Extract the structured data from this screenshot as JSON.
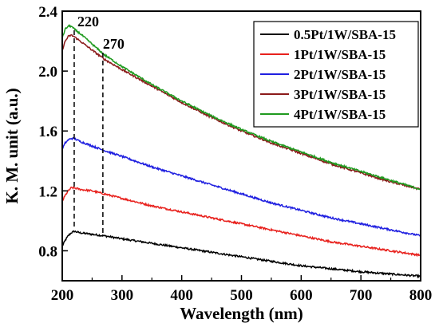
{
  "chart_data": {
    "type": "line",
    "title": "",
    "xlabel": "Wavelength (nm)",
    "ylabel": "K. M. unit (a.u.)",
    "xlim": [
      200,
      800
    ],
    "ylim": [
      0.6,
      2.4
    ],
    "xticks": [
      200,
      300,
      400,
      500,
      600,
      700,
      800
    ],
    "yticks": [
      0.8,
      1.2,
      1.6,
      2.0,
      2.4
    ],
    "xtick_labels": [
      "200",
      "300",
      "400",
      "500",
      "600",
      "700",
      "800"
    ],
    "ytick_labels": [
      "0.8",
      "1.2",
      "1.6",
      "2.0",
      "2.4"
    ],
    "grid": false,
    "legend_position": "top-right",
    "annotations": [
      {
        "label": "220",
        "x": 220
      },
      {
        "label": "270",
        "x": 268
      }
    ],
    "series": [
      {
        "name": "0.5Pt/1W/SBA-15",
        "color": "#000000",
        "points": [
          [
            200,
            0.83
          ],
          [
            205,
            0.87
          ],
          [
            210,
            0.9
          ],
          [
            215,
            0.92
          ],
          [
            220,
            0.93
          ],
          [
            230,
            0.92
          ],
          [
            250,
            0.91
          ],
          [
            270,
            0.9
          ],
          [
            300,
            0.88
          ],
          [
            350,
            0.85
          ],
          [
            400,
            0.82
          ],
          [
            450,
            0.79
          ],
          [
            500,
            0.76
          ],
          [
            550,
            0.73
          ],
          [
            600,
            0.7
          ],
          [
            650,
            0.68
          ],
          [
            700,
            0.66
          ],
          [
            750,
            0.645
          ],
          [
            800,
            0.63
          ]
        ]
      },
      {
        "name": "1Pt/1W/SBA-15",
        "color": "#e8211d",
        "points": [
          [
            200,
            1.13
          ],
          [
            205,
            1.17
          ],
          [
            210,
            1.2
          ],
          [
            215,
            1.22
          ],
          [
            220,
            1.22
          ],
          [
            230,
            1.21
          ],
          [
            250,
            1.2
          ],
          [
            270,
            1.18
          ],
          [
            300,
            1.15
          ],
          [
            350,
            1.1
          ],
          [
            400,
            1.06
          ],
          [
            450,
            1.02
          ],
          [
            500,
            0.98
          ],
          [
            550,
            0.94
          ],
          [
            600,
            0.9
          ],
          [
            650,
            0.86
          ],
          [
            700,
            0.83
          ],
          [
            750,
            0.8
          ],
          [
            800,
            0.77
          ]
        ]
      },
      {
        "name": "2Pt/1W/SBA-15",
        "color": "#1f1fe0",
        "points": [
          [
            200,
            1.48
          ],
          [
            205,
            1.52
          ],
          [
            210,
            1.54
          ],
          [
            215,
            1.55
          ],
          [
            220,
            1.55
          ],
          [
            230,
            1.53
          ],
          [
            250,
            1.5
          ],
          [
            270,
            1.47
          ],
          [
            300,
            1.43
          ],
          [
            350,
            1.36
          ],
          [
            400,
            1.3
          ],
          [
            450,
            1.24
          ],
          [
            500,
            1.18
          ],
          [
            550,
            1.12
          ],
          [
            600,
            1.07
          ],
          [
            650,
            1.02
          ],
          [
            700,
            0.98
          ],
          [
            750,
            0.94
          ],
          [
            800,
            0.9
          ]
        ]
      },
      {
        "name": "3Pt/1W/SBA-15",
        "color": "#8b1a1a",
        "points": [
          [
            200,
            2.14
          ],
          [
            205,
            2.2
          ],
          [
            210,
            2.23
          ],
          [
            215,
            2.24
          ],
          [
            220,
            2.23
          ],
          [
            230,
            2.2
          ],
          [
            250,
            2.14
          ],
          [
            270,
            2.08
          ],
          [
            300,
            2.01
          ],
          [
            350,
            1.9
          ],
          [
            400,
            1.79
          ],
          [
            450,
            1.69
          ],
          [
            500,
            1.6
          ],
          [
            550,
            1.52
          ],
          [
            600,
            1.45
          ],
          [
            650,
            1.38
          ],
          [
            700,
            1.32
          ],
          [
            750,
            1.26
          ],
          [
            800,
            1.21
          ]
        ]
      },
      {
        "name": "4Pt/1W/SBA-15",
        "color": "#1f9a1f",
        "points": [
          [
            200,
            2.22
          ],
          [
            205,
            2.28
          ],
          [
            210,
            2.3
          ],
          [
            215,
            2.3
          ],
          [
            220,
            2.28
          ],
          [
            230,
            2.25
          ],
          [
            250,
            2.18
          ],
          [
            270,
            2.11
          ],
          [
            300,
            2.03
          ],
          [
            350,
            1.91
          ],
          [
            400,
            1.8
          ],
          [
            450,
            1.7
          ],
          [
            500,
            1.61
          ],
          [
            550,
            1.53
          ],
          [
            600,
            1.46
          ],
          [
            650,
            1.39
          ],
          [
            700,
            1.33
          ],
          [
            750,
            1.27
          ],
          [
            800,
            1.21
          ]
        ]
      }
    ]
  }
}
